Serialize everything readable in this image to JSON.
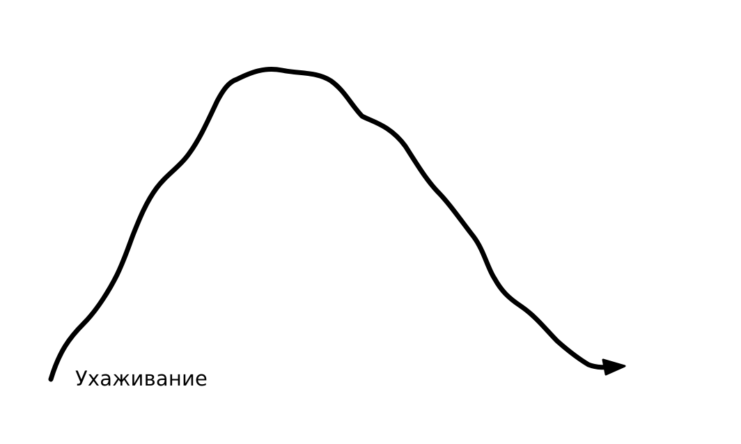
{
  "diagram": {
    "label": "Ухаживание",
    "stroke_color": "#000000",
    "background_color": "#ffffff",
    "shape": "hand-drawn rising-and-falling curve ending in an arrowhead",
    "line_icon": "curve-arrow-icon"
  }
}
